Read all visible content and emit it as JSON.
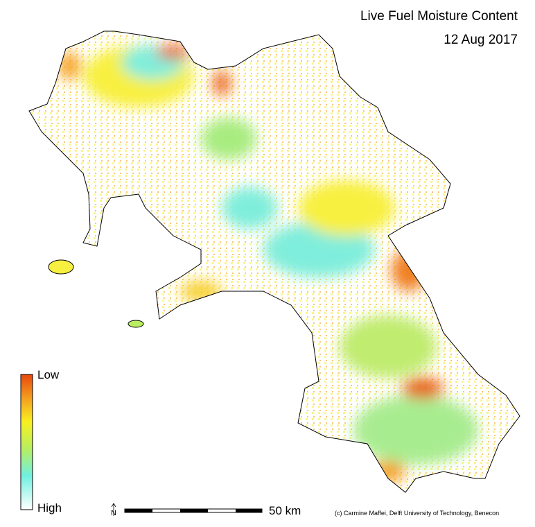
{
  "header": {
    "title": "Live Fuel Moisture Content",
    "date": "12 Aug 2017"
  },
  "legend": {
    "low": "Low",
    "high": "High"
  },
  "north_arrow": {
    "label": "N"
  },
  "scale_bar": {
    "label": "50 km"
  },
  "credit": "(c) Carmine Maffei, Delft University of Technology, Benecon"
}
